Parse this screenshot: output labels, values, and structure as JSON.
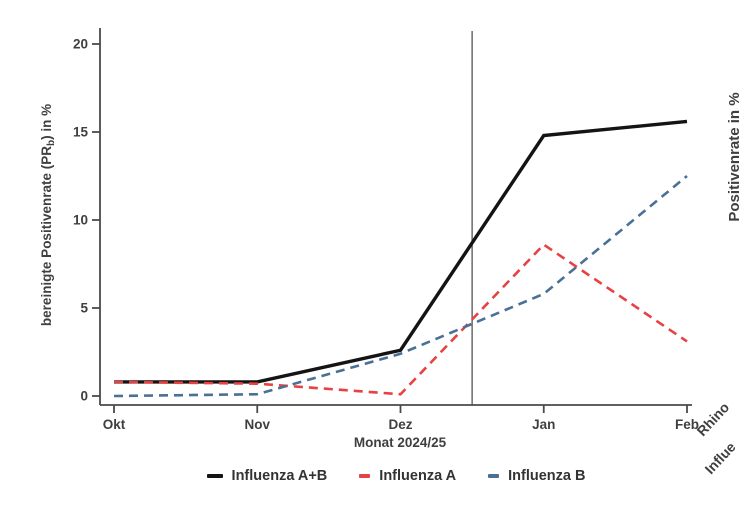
{
  "chart_data": {
    "type": "line",
    "title": "",
    "x_categories": [
      "Okt",
      "Nov",
      "Dez",
      "Jan",
      "Feb"
    ],
    "xlabel": "Monat 2024/25",
    "ylabel_pre": "bereinigte Positivenrate (PR",
    "ylabel_sub": "b",
    "ylabel_post": ") in %",
    "yticks": [
      0,
      5,
      10,
      15,
      20
    ],
    "ylim": [
      0,
      20.9
    ],
    "grid": false,
    "legend_position": "bottom-center",
    "axis_color": "#4a4a4a",
    "text_color": "#3f3f3f",
    "series": [
      {
        "name": "Influenza A+B",
        "color": "#141414",
        "style": "solid",
        "values": [
          0.8,
          0.8,
          2.6,
          14.8,
          15.6
        ]
      },
      {
        "name": "Influenza A",
        "color": "#e84141",
        "style": "dashed",
        "values": [
          0.8,
          0.7,
          0.1,
          8.6,
          3.1
        ]
      },
      {
        "name": "Influenza B",
        "color": "#4a7096",
        "style": "dashed",
        "values": [
          0.0,
          0.1,
          2.4,
          5.8,
          12.5
        ]
      }
    ],
    "reference_line": {
      "axis": "x",
      "position_index": 2.5,
      "color": "#606060"
    }
  },
  "right_panel": {
    "ylabel": "Positivenrate in %",
    "x_tick_labels_partial": [
      "Rhino",
      "Influe"
    ]
  }
}
